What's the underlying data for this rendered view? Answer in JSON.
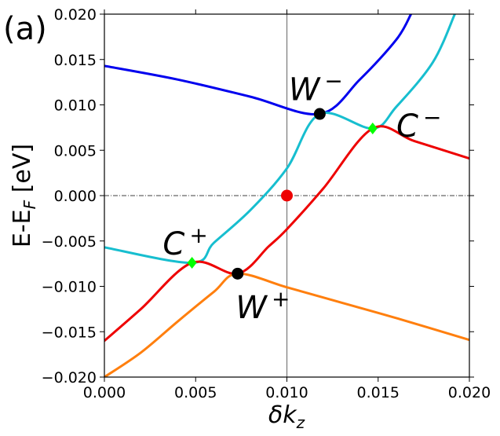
{
  "chart_data": {
    "type": "line",
    "panel_label": "(a)",
    "xlabel": "δk",
    "xlabel_sub": "z",
    "ylabel_main": "E-E",
    "ylabel_sub": "F",
    "ylabel_unit": " [eV]",
    "xlim": [
      0.0,
      0.02
    ],
    "ylim": [
      -0.02,
      0.02
    ],
    "x_ticks": [
      0.0,
      0.005,
      0.01,
      0.015,
      0.02
    ],
    "x_tick_labels": [
      "0.000",
      "0.005",
      "0.010",
      "0.015",
      "0.020"
    ],
    "y_ticks": [
      -0.02,
      -0.015,
      -0.01,
      -0.005,
      0.0,
      0.005,
      0.01,
      0.015,
      0.02
    ],
    "y_tick_labels": [
      "−0.020",
      "−0.015",
      "−0.010",
      "−0.005",
      "0.000",
      "0.005",
      "0.010",
      "0.015",
      "0.020"
    ],
    "reference_lines": [
      {
        "orientation": "horizontal",
        "value": 0.0,
        "style": "dashdot",
        "color": "#000000"
      },
      {
        "orientation": "vertical",
        "value": 0.01,
        "style": "solid",
        "color": "#808080"
      }
    ],
    "series": [
      {
        "color": "#0000ee",
        "points": [
          [
            0.0,
            0.0143
          ],
          [
            0.004,
            0.0128
          ],
          [
            0.008,
            0.0109
          ],
          [
            0.0118,
            0.009
          ],
          [
            0.014,
            0.0128
          ],
          [
            0.016,
            0.0172
          ],
          [
            0.0168,
            0.02
          ]
        ]
      },
      {
        "color": "#17becf",
        "points": [
          [
            0.0,
            -0.0057
          ],
          [
            0.0048,
            -0.0074
          ],
          [
            0.006,
            -0.0052
          ],
          [
            0.008,
            -0.0016
          ],
          [
            0.01,
            0.003
          ],
          [
            0.0118,
            0.009
          ],
          [
            0.0147,
            0.0074
          ],
          [
            0.016,
            0.0098
          ],
          [
            0.018,
            0.0147
          ],
          [
            0.0192,
            0.02
          ]
        ]
      },
      {
        "color": "#ee0000",
        "points": [
          [
            0.0,
            -0.016
          ],
          [
            0.002,
            -0.0125
          ],
          [
            0.0048,
            -0.0074
          ],
          [
            0.0073,
            -0.0086
          ],
          [
            0.009,
            -0.0056
          ],
          [
            0.01,
            -0.0037
          ],
          [
            0.012,
            0.0008
          ],
          [
            0.0147,
            0.0074
          ],
          [
            0.017,
            0.006
          ],
          [
            0.02,
            0.0041
          ]
        ]
      },
      {
        "color": "#ff7f0e",
        "points": [
          [
            0.0,
            -0.02
          ],
          [
            0.002,
            -0.0173
          ],
          [
            0.004,
            -0.0139
          ],
          [
            0.006,
            -0.0106
          ],
          [
            0.0073,
            -0.0086
          ],
          [
            0.01,
            -0.0101
          ],
          [
            0.013,
            -0.0118
          ],
          [
            0.016,
            -0.0135
          ],
          [
            0.02,
            -0.0159
          ]
        ]
      }
    ],
    "markers": [
      {
        "shape": "circle",
        "color": "#000000",
        "x": 0.0118,
        "y": 0.009
      },
      {
        "shape": "circle",
        "color": "#000000",
        "x": 0.0073,
        "y": -0.0086
      },
      {
        "shape": "diamond",
        "color": "#00ff00",
        "x": 0.0147,
        "y": 0.0074
      },
      {
        "shape": "diamond",
        "color": "#00ff00",
        "x": 0.0048,
        "y": -0.0074
      },
      {
        "shape": "circle",
        "color": "#ee0000",
        "x": 0.01,
        "y": 0.0
      }
    ],
    "annotations": [
      {
        "base": "W",
        "sup": "−",
        "x": 0.0101,
        "y": 0.0105
      },
      {
        "base": "C",
        "sup": "−",
        "x": 0.016,
        "y": 0.0065
      },
      {
        "base": "C",
        "sup": "+",
        "x": 0.0032,
        "y": -0.0065
      },
      {
        "base": "W",
        "sup": "+",
        "x": 0.0072,
        "y": -0.0135
      }
    ]
  }
}
